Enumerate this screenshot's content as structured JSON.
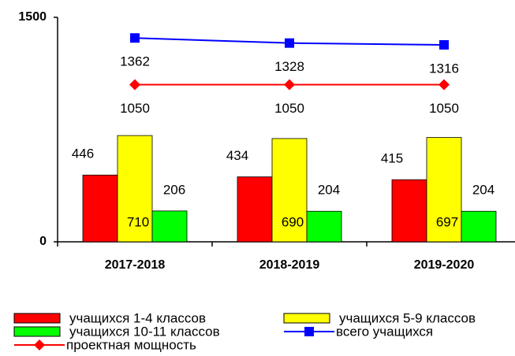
{
  "chart_data": {
    "type": "bar",
    "categories": [
      "2017-2018",
      "2018-2019",
      "2019-2020"
    ],
    "series": [
      {
        "name": "учащихся 1-4 классов",
        "type": "bar",
        "color": "#ff0000",
        "values": [
          446,
          434,
          415
        ]
      },
      {
        "name": "учащихся 5-9 классов",
        "type": "bar",
        "color": "#ffff00",
        "values": [
          710,
          690,
          697
        ]
      },
      {
        "name": "учащихся 10-11 классов",
        "type": "bar",
        "color": "#00ff00",
        "values": [
          206,
          204,
          204
        ]
      },
      {
        "name": "всего учащихся",
        "type": "line",
        "color": "#0000ff",
        "values": [
          1362,
          1328,
          1316
        ]
      },
      {
        "name": "проектная мощность",
        "type": "line",
        "color": "#ff0000",
        "values": [
          1050,
          1050,
          1050
        ]
      }
    ],
    "ylim": [
      0,
      1500
    ],
    "yticks": [
      0,
      1500
    ],
    "grid": false,
    "legend": "bottom"
  }
}
